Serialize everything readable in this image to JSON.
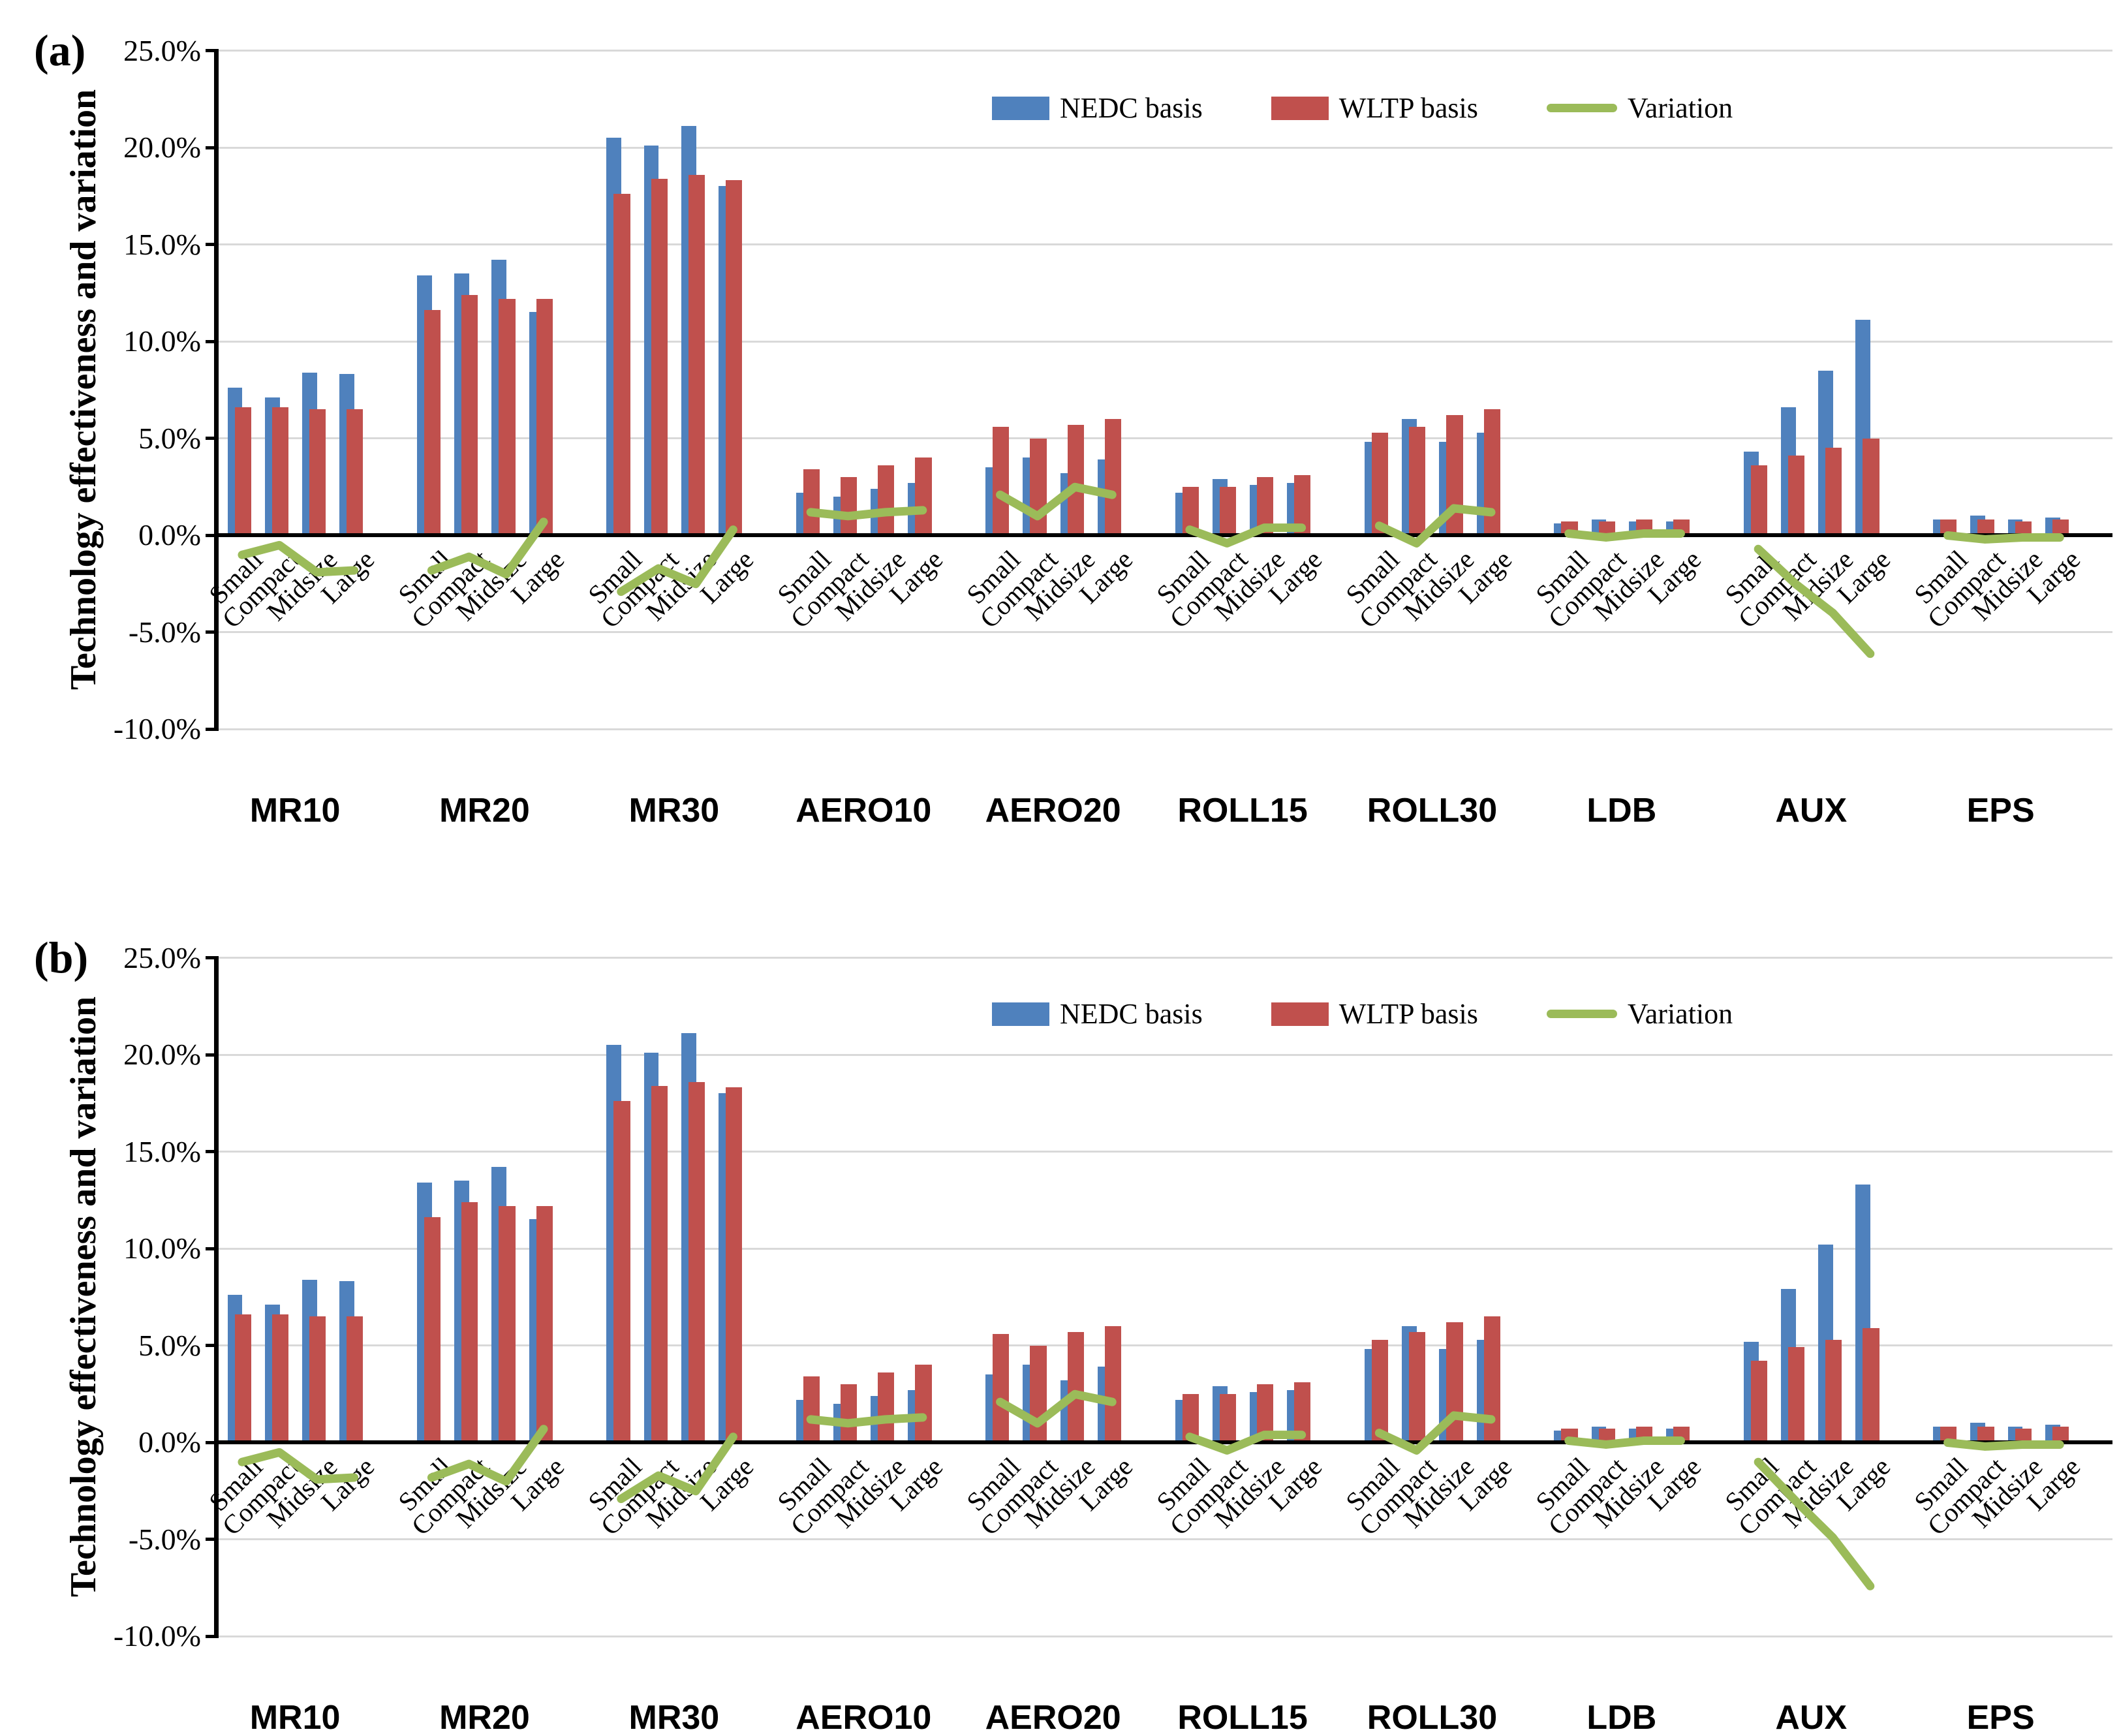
{
  "colors": {
    "nedc": "#4F81BD",
    "wltp": "#C0504D",
    "variation": "#9BBB59",
    "gridline": "#D9D9D9",
    "axis": "#000000"
  },
  "legend": {
    "items": [
      {
        "key": "nedc",
        "label": "NEDC basis",
        "swatch": "rect"
      },
      {
        "key": "wltp",
        "label": "WLTP basis",
        "swatch": "rect"
      },
      {
        "key": "variation",
        "label": "Variation",
        "swatch": "line"
      }
    ]
  },
  "y_axis": {
    "label": "Technology effectiveness and variation",
    "tick_labels": [
      "25.0%",
      "20.0%",
      "15.0%",
      "10.0%",
      "5.0%",
      "0.0%",
      "-5.0%",
      "-10.0%"
    ],
    "tick_values": [
      25,
      20,
      15,
      10,
      5,
      0,
      -5,
      -10
    ]
  },
  "categories": [
    "Small",
    "Compact",
    "Midsize",
    "Large"
  ],
  "chart_data": [
    {
      "type": "bar+line",
      "panel_label": "(a)",
      "ylabel": "Technology effectiveness and variation",
      "ylim": [
        -10,
        25
      ],
      "grid": true,
      "legend_position": "top-center",
      "unit_suffix": "%",
      "groups": [
        {
          "name": "MR10",
          "nedc": [
            7.6,
            7.1,
            8.4,
            8.3
          ],
          "wltp": [
            6.6,
            6.6,
            6.5,
            6.5
          ],
          "variation": [
            -1.0,
            -0.5,
            -1.9,
            -1.8
          ]
        },
        {
          "name": "MR20",
          "nedc": [
            13.4,
            13.5,
            14.2,
            11.5
          ],
          "wltp": [
            11.6,
            12.4,
            12.2,
            12.2
          ],
          "variation": [
            -1.8,
            -1.1,
            -2.0,
            0.7
          ]
        },
        {
          "name": "MR30",
          "nedc": [
            20.5,
            20.1,
            21.1,
            18.0
          ],
          "wltp": [
            17.6,
            18.4,
            18.6,
            18.3
          ],
          "variation": [
            -2.9,
            -1.7,
            -2.5,
            0.3
          ]
        },
        {
          "name": "AERO10",
          "nedc": [
            2.2,
            2.0,
            2.4,
            2.7
          ],
          "wltp": [
            3.4,
            3.0,
            3.6,
            4.0
          ],
          "variation": [
            1.2,
            1.0,
            1.2,
            1.3
          ]
        },
        {
          "name": "AERO20",
          "nedc": [
            3.5,
            4.0,
            3.2,
            3.9
          ],
          "wltp": [
            5.6,
            5.0,
            5.7,
            6.0
          ],
          "variation": [
            2.1,
            1.0,
            2.5,
            2.1
          ]
        },
        {
          "name": "ROLL15",
          "nedc": [
            2.2,
            2.9,
            2.6,
            2.7
          ],
          "wltp": [
            2.5,
            2.5,
            3.0,
            3.1
          ],
          "variation": [
            0.3,
            -0.4,
            0.4,
            0.4
          ]
        },
        {
          "name": "ROLL30",
          "nedc": [
            4.8,
            6.0,
            4.8,
            5.3
          ],
          "wltp": [
            5.3,
            5.6,
            6.2,
            6.5
          ],
          "variation": [
            0.5,
            -0.4,
            1.4,
            1.2
          ]
        },
        {
          "name": "LDB",
          "nedc": [
            0.6,
            0.8,
            0.7,
            0.7
          ],
          "wltp": [
            0.7,
            0.7,
            0.8,
            0.8
          ],
          "variation": [
            0.1,
            -0.1,
            0.1,
            0.1
          ]
        },
        {
          "name": "AUX",
          "nedc": [
            4.3,
            6.6,
            8.5,
            11.1
          ],
          "wltp": [
            3.6,
            4.1,
            4.5,
            5.0
          ],
          "variation": [
            -0.7,
            -2.5,
            -4.0,
            -6.1
          ]
        },
        {
          "name": "EPS",
          "nedc": [
            0.8,
            1.0,
            0.8,
            0.9
          ],
          "wltp": [
            0.8,
            0.8,
            0.7,
            0.8
          ],
          "variation": [
            0.0,
            -0.2,
            -0.1,
            -0.1
          ]
        }
      ]
    },
    {
      "type": "bar+line",
      "panel_label": "(b)",
      "ylabel": "Technology effectiveness and variation",
      "ylim": [
        -10,
        25
      ],
      "grid": true,
      "legend_position": "top-center",
      "unit_suffix": "%",
      "groups": [
        {
          "name": "MR10",
          "nedc": [
            7.6,
            7.1,
            8.4,
            8.3
          ],
          "wltp": [
            6.6,
            6.6,
            6.5,
            6.5
          ],
          "variation": [
            -1.0,
            -0.5,
            -1.9,
            -1.8
          ]
        },
        {
          "name": "MR20",
          "nedc": [
            13.4,
            13.5,
            14.2,
            11.5
          ],
          "wltp": [
            11.6,
            12.4,
            12.2,
            12.2
          ],
          "variation": [
            -1.8,
            -1.1,
            -2.0,
            0.7
          ]
        },
        {
          "name": "MR30",
          "nedc": [
            20.5,
            20.1,
            21.1,
            18.0
          ],
          "wltp": [
            17.6,
            18.4,
            18.6,
            18.3
          ],
          "variation": [
            -2.9,
            -1.7,
            -2.5,
            0.3
          ]
        },
        {
          "name": "AERO10",
          "nedc": [
            2.2,
            2.0,
            2.4,
            2.7
          ],
          "wltp": [
            3.4,
            3.0,
            3.6,
            4.0
          ],
          "variation": [
            1.2,
            1.0,
            1.2,
            1.3
          ]
        },
        {
          "name": "AERO20",
          "nedc": [
            3.5,
            4.0,
            3.2,
            3.9
          ],
          "wltp": [
            5.6,
            5.0,
            5.7,
            6.0
          ],
          "variation": [
            2.1,
            1.0,
            2.5,
            2.1
          ]
        },
        {
          "name": "ROLL15",
          "nedc": [
            2.2,
            2.9,
            2.6,
            2.7
          ],
          "wltp": [
            2.5,
            2.5,
            3.0,
            3.1
          ],
          "variation": [
            0.3,
            -0.4,
            0.4,
            0.4
          ]
        },
        {
          "name": "ROLL30",
          "nedc": [
            4.8,
            6.0,
            4.8,
            5.3
          ],
          "wltp": [
            5.3,
            5.7,
            6.2,
            6.5
          ],
          "variation": [
            0.5,
            -0.4,
            1.4,
            1.2
          ]
        },
        {
          "name": "LDB",
          "nedc": [
            0.6,
            0.8,
            0.7,
            0.7
          ],
          "wltp": [
            0.7,
            0.7,
            0.8,
            0.8
          ],
          "variation": [
            0.1,
            -0.1,
            0.1,
            0.1
          ]
        },
        {
          "name": "AUX",
          "nedc": [
            5.2,
            7.9,
            10.2,
            13.3
          ],
          "wltp": [
            4.2,
            4.9,
            5.3,
            5.9
          ],
          "variation": [
            -1.0,
            -3.0,
            -4.9,
            -7.4
          ]
        },
        {
          "name": "EPS",
          "nedc": [
            0.8,
            1.0,
            0.8,
            0.9
          ],
          "wltp": [
            0.8,
            0.8,
            0.7,
            0.8
          ],
          "variation": [
            0.0,
            -0.2,
            -0.1,
            -0.1
          ]
        }
      ]
    }
  ]
}
